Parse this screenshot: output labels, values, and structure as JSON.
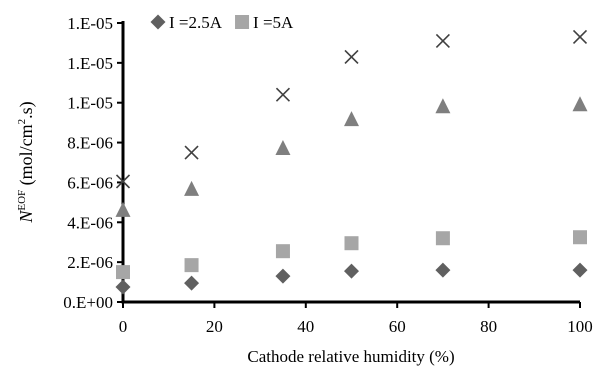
{
  "chart_data": {
    "type": "scatter",
    "x_label": "Cathode relative humidity (%)",
    "y_label": [
      "N",
      "EOF",
      " (mol/cm",
      "2",
      ".s)"
    ],
    "xlim": [
      0,
      100
    ],
    "xticks": [
      0,
      20,
      40,
      60,
      80,
      100
    ],
    "ylim": [
      0,
      1.4e-05
    ],
    "yticks": [
      {
        "value": 0,
        "label": "0.E+00"
      },
      {
        "value": 2e-06,
        "label": "2.E-06"
      },
      {
        "value": 4e-06,
        "label": "4.E-06"
      },
      {
        "value": 6e-06,
        "label": "6.E-06"
      },
      {
        "value": 8e-06,
        "label": "8.E-06"
      },
      {
        "value": 1e-05,
        "label": "1.E-05"
      },
      {
        "value": 1.2e-05,
        "label": "1.E-05"
      },
      {
        "value": 1.4e-05,
        "label": "1.E-05"
      }
    ],
    "legend": "upper-left",
    "series": [
      {
        "name": "I =2.5A",
        "color": "#606060",
        "marker": "diamond",
        "x": [
          0,
          15,
          35,
          50,
          70,
          100
        ],
        "values": [
          7.5e-07,
          9.5e-07,
          1.3e-06,
          1.55e-06,
          1.6e-06,
          1.6e-06
        ]
      },
      {
        "name": "I =5A",
        "color": "#a6a6a6",
        "marker": "square",
        "x": [
          0,
          15,
          35,
          50,
          70,
          100
        ],
        "values": [
          1.5e-06,
          1.85e-06,
          2.55e-06,
          2.95e-06,
          3.2e-06,
          3.25e-06
        ]
      },
      {
        "color": "#7f7f7f",
        "marker": "triangle",
        "x": [
          0,
          15,
          35,
          50,
          70,
          100
        ],
        "values": [
          4.6e-06,
          5.65e-06,
          7.7e-06,
          9.15e-06,
          9.8e-06,
          9.9e-06
        ]
      },
      {
        "color": "#404040",
        "marker": "x",
        "x": [
          0,
          15,
          35,
          50,
          70,
          100
        ],
        "values": [
          6.05e-06,
          7.5e-06,
          1.04e-05,
          1.23e-05,
          1.31e-05,
          1.33e-05
        ]
      }
    ]
  }
}
